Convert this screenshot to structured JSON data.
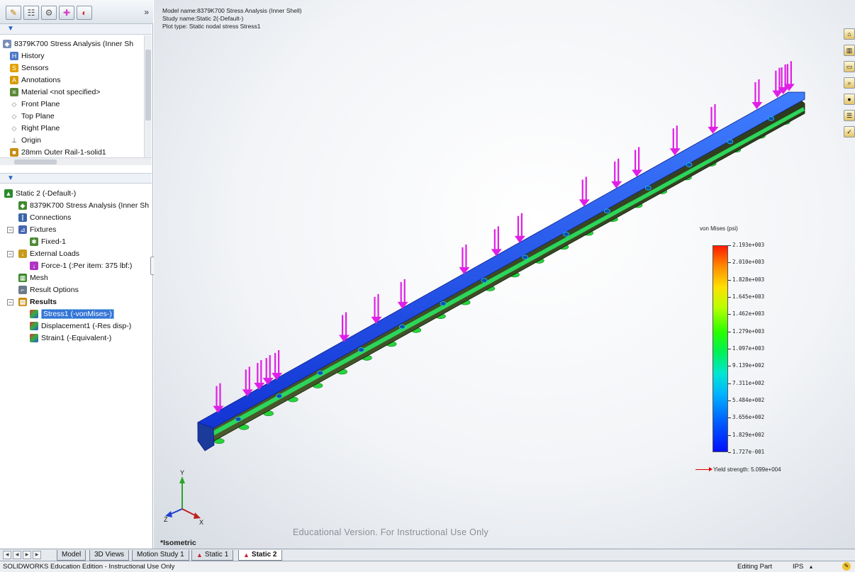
{
  "toolbar": {
    "buttons": [
      {
        "icon": "feature-manager-icon",
        "glyph": "✎",
        "color": "#c77a00"
      },
      {
        "icon": "property-manager-icon",
        "glyph": "☷",
        "color": "#444"
      },
      {
        "icon": "configuration-manager-icon",
        "glyph": "⚙",
        "color": "#555"
      },
      {
        "icon": "dimxpert-icon",
        "glyph": "✚",
        "color": "#d13fc6"
      },
      {
        "icon": "display-manager-icon",
        "glyph": "◐",
        "color": "#d03030"
      }
    ],
    "more_glyph": "»"
  },
  "feature_tree": {
    "items": [
      {
        "label": "8379K700 Stress Analysis (Inner Sh",
        "icon": "part-icon"
      },
      {
        "label": "History",
        "icon": "history-icon"
      },
      {
        "label": "Sensors",
        "icon": "sensors-icon"
      },
      {
        "label": "Annotations",
        "icon": "annotations-icon"
      },
      {
        "label": "Material <not specified>",
        "icon": "material-icon"
      },
      {
        "label": "Front Plane",
        "icon": "plane-icon"
      },
      {
        "label": "Top Plane",
        "icon": "plane-icon"
      },
      {
        "label": "Right Plane",
        "icon": "plane-icon"
      },
      {
        "label": "Origin",
        "icon": "origin-icon"
      },
      {
        "label": "28mm Outer Rail-1-solid1",
        "icon": "solid-body-icon"
      }
    ]
  },
  "study_tree": {
    "items": [
      {
        "label": "Static 2 (-Default-)",
        "icon": "study-icon"
      },
      {
        "label": "8379K700 Stress Analysis (Inner Sh",
        "icon": "part-icon"
      },
      {
        "label": "Connections",
        "icon": "connections-icon"
      },
      {
        "label": "Fixtures",
        "icon": "fixtures-icon"
      },
      {
        "label": "Fixed-1",
        "icon": "fixed-icon"
      },
      {
        "label": "External Loads",
        "icon": "external-loads-icon"
      },
      {
        "label": "Force-1 (:Per item: 375 lbf:)",
        "icon": "force-icon"
      },
      {
        "label": "Mesh",
        "icon": "mesh-icon"
      },
      {
        "label": "Result Options",
        "icon": "result-options-icon"
      },
      {
        "label": "Results",
        "icon": "results-folder-icon"
      },
      {
        "label": "Stress1 (-vonMises-)",
        "icon": "stress-plot-icon"
      },
      {
        "label": "Displacement1 (-Res disp-)",
        "icon": "displacement-plot-icon"
      },
      {
        "label": "Strain1 (-Equivalent-)",
        "icon": "strain-plot-icon"
      }
    ]
  },
  "viewport": {
    "model_name": "Model name:8379K700 Stress Analysis (Inner Shell)",
    "study_name": "Study name:Static 2(-Default-)",
    "plot_type": "Plot type: Static nodal stress Stress1",
    "watermark": "Educational Version. For Instructional Use Only",
    "view_orientation": "*Isometric",
    "triad": {
      "x": "X",
      "y": "Y",
      "z": "Z"
    }
  },
  "legend": {
    "title": "von Mises (psi)",
    "labels": [
      "2.193e+003",
      "2.010e+003",
      "1.828e+003",
      "1.645e+003",
      "1.462e+003",
      "1.279e+003",
      "1.097e+003",
      "9.139e+002",
      "7.311e+002",
      "5.484e+002",
      "3.656e+002",
      "1.829e+002",
      "1.727e-001"
    ],
    "yield_strength": "Yield strength: 5.099e+004"
  },
  "right_toolbar": {
    "buttons": [
      "solidworks-resources-icon",
      "design-library-icon",
      "file-explorer-icon",
      "search-icon",
      "appearances-icon",
      "custom-properties-icon",
      "simulation-advisor-icon"
    ]
  },
  "tabs": [
    {
      "label": "Model",
      "active": false,
      "icon": ""
    },
    {
      "label": "3D Views",
      "active": false,
      "icon": ""
    },
    {
      "label": "Motion Study 1",
      "active": false,
      "icon": ""
    },
    {
      "label": "Static 1",
      "active": false,
      "icon": "study-tab-icon"
    },
    {
      "label": "Static 2",
      "active": true,
      "icon": "study-tab-icon"
    }
  ],
  "status": {
    "left": "SOLIDWORKS Education Edition - Instructional Use Only",
    "mode": "Editing Part",
    "units": "IPS",
    "units_arrow": "▴"
  },
  "colors": {
    "beam_top": "#1f5cf2",
    "beam_side": "#3a4a22",
    "beam_edge": "#2bd65a",
    "load_arrow": "#e01ee6",
    "fixture": "#26d63c"
  }
}
